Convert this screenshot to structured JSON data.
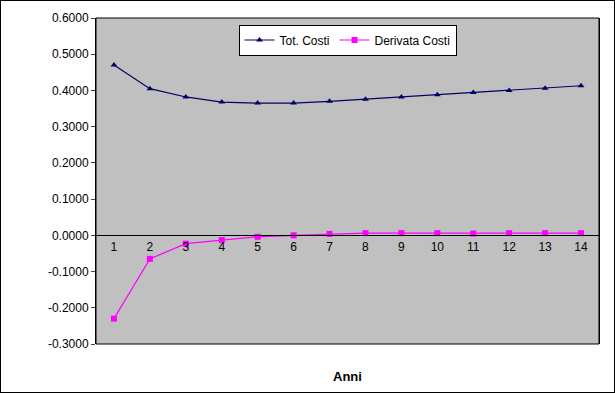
{
  "chart_data": {
    "type": "line",
    "x_label": "Anni",
    "categories": [
      "1",
      "2",
      "3",
      "4",
      "5",
      "6",
      "7",
      "8",
      "9",
      "10",
      "11",
      "12",
      "13",
      "14"
    ],
    "series": [
      {
        "name": "Tot. Costi",
        "color": "#000066",
        "marker": "triangle-up",
        "line_style": "solid",
        "values": [
          0.47,
          0.405,
          0.382,
          0.368,
          0.365,
          0.365,
          0.37,
          0.376,
          0.382,
          0.388,
          0.394,
          0.4,
          0.406,
          0.413
        ]
      },
      {
        "name": "Derivata Costi",
        "color": "#ff00ff",
        "marker": "square",
        "line_style": "solid",
        "values": [
          -0.23,
          -0.065,
          -0.023,
          -0.013,
          -0.004,
          0.0,
          0.004,
          0.006,
          0.006,
          0.006,
          0.005,
          0.006,
          0.006,
          0.006
        ]
      }
    ],
    "ylim": [
      -0.3,
      0.6
    ],
    "yticks": [
      {
        "value": -0.3,
        "label": "-0.3000"
      },
      {
        "value": -0.2,
        "label": "-0.2000"
      },
      {
        "value": -0.1,
        "label": "-0.1000"
      },
      {
        "value": 0,
        "label": "0.0000"
      },
      {
        "value": 0.1,
        "label": "0.1000"
      },
      {
        "value": 0.2,
        "label": "0.2000"
      },
      {
        "value": 0.3,
        "label": "0.3000"
      },
      {
        "value": 0.4,
        "label": "0.4000"
      },
      {
        "value": 0.5,
        "label": "0.5000"
      },
      {
        "value": 0.6,
        "label": "0.6000"
      }
    ],
    "grid": false,
    "legend": "top"
  }
}
